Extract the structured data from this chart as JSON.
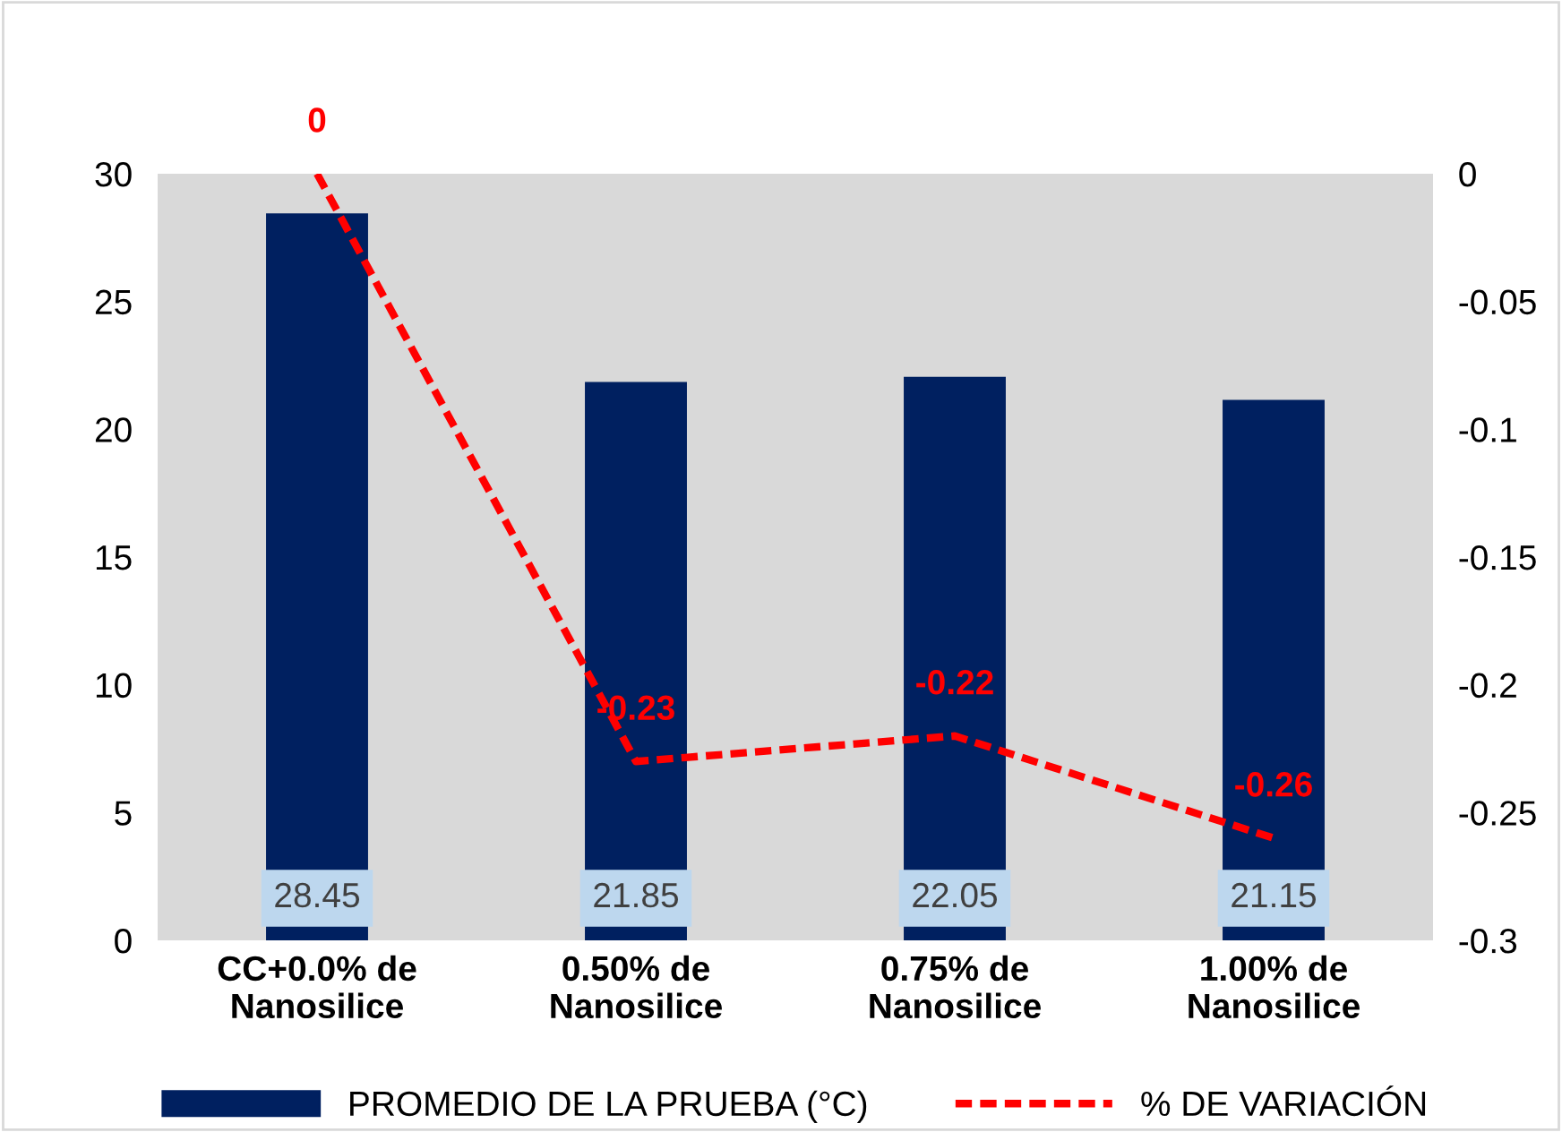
{
  "chart_data": {
    "type": "bar",
    "categories": [
      "CC+0.0% de\nNanosilice",
      "0.50% de\nNanosilice",
      "0.75% de\nNanosilice",
      "1.00% de\nNanosilice"
    ],
    "series": [
      {
        "name": "PROMEDIO DE LA PRUEBA (°C)",
        "color": "#002060",
        "values": [
          28.45,
          21.85,
          22.05,
          21.15
        ]
      },
      {
        "name": "% DE VARIACIÓN",
        "type": "line",
        "axis": "y2",
        "color": "#ff0000",
        "line_style": "dashed",
        "marker": "none",
        "values": [
          0,
          -0.23,
          -0.22,
          -0.26
        ]
      }
    ],
    "ylim": [
      0,
      30
    ],
    "yticks": [
      0,
      5,
      10,
      15,
      20,
      25,
      30
    ],
    "y2lim": [
      -0.3,
      0
    ],
    "y2ticks": [
      -0.3,
      -0.25,
      -0.2,
      -0.15,
      -0.1,
      -0.05,
      0
    ],
    "data_labels": true,
    "grid": false,
    "legend": "bottom"
  }
}
